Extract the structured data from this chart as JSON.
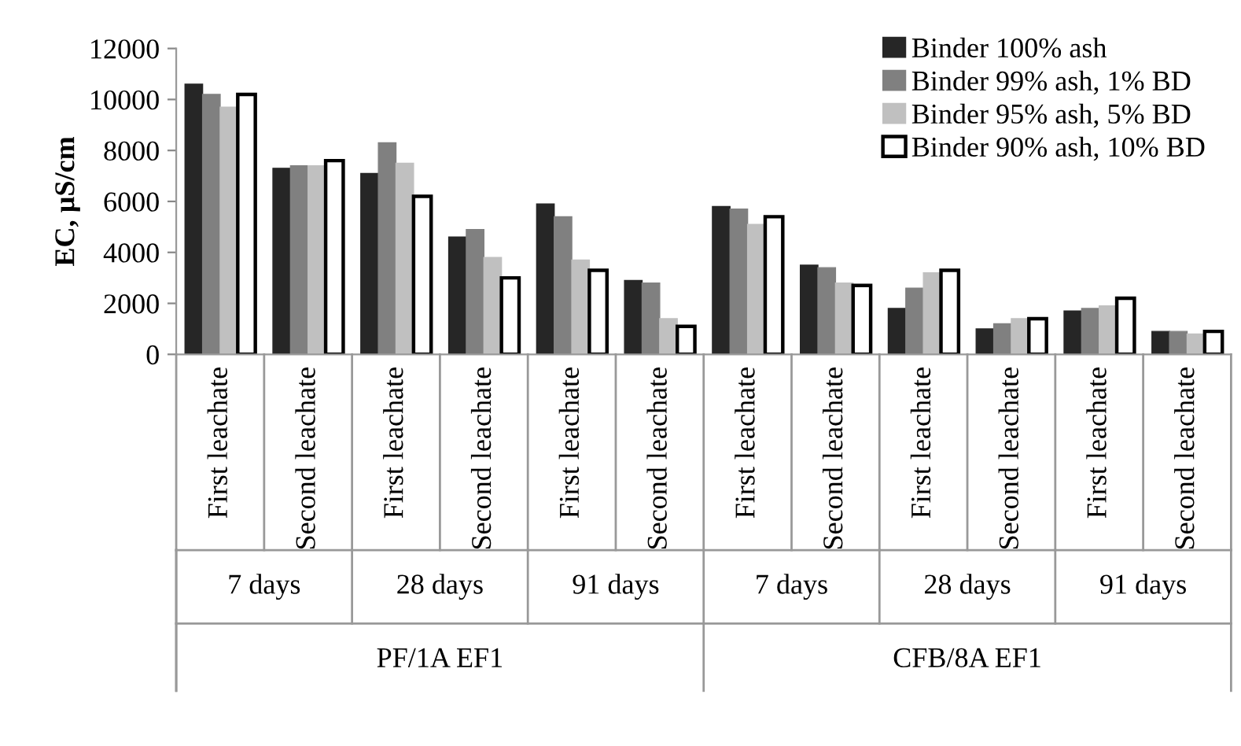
{
  "chart_data": {
    "type": "bar",
    "ylabel": "EC, µS/cm",
    "categories": [
      "First leachate",
      "Second leachate",
      "First leachate",
      "Second leachate",
      "First leachate",
      "Second leachate",
      "First leachate",
      "Second leachate",
      "First leachate",
      "Second leachate",
      "First leachate",
      "Second leachate"
    ],
    "series": [
      {
        "name": "Binder 100% ash",
        "color": "#262626",
        "values": [
          10600,
          7300,
          7100,
          4600,
          5900,
          2900,
          5800,
          3500,
          1800,
          1000,
          1700,
          900
        ]
      },
      {
        "name": "Binder 99% ash, 1% BD",
        "color": "#808080",
        "values": [
          10200,
          7400,
          8300,
          4900,
          5400,
          2800,
          5700,
          3400,
          2600,
          1200,
          1800,
          900
        ]
      },
      {
        "name": "Binder 95% ash, 5% BD",
        "color": "#c0c0c0",
        "values": [
          9700,
          7400,
          7500,
          3800,
          3700,
          1400,
          5100,
          2800,
          3200,
          1400,
          1900,
          800
        ]
      },
      {
        "name": "Binder 90% ash, 10% BD",
        "color": "#ffffff",
        "values": [
          10200,
          7600,
          6200,
          3000,
          3300,
          1100,
          5400,
          2700,
          3300,
          1400,
          2200,
          900
        ]
      }
    ],
    "annotations": [
      "7 days",
      "28 days",
      "91 days",
      "7 days",
      "28 days",
      "91 days",
      "PF/1A EF1",
      "CFB/8A EF1"
    ],
    "ylim": [
      0,
      12000
    ],
    "yticks": [
      0,
      2000,
      4000,
      6000,
      8000,
      10000,
      12000
    ],
    "grid": false,
    "legend": "top right"
  }
}
